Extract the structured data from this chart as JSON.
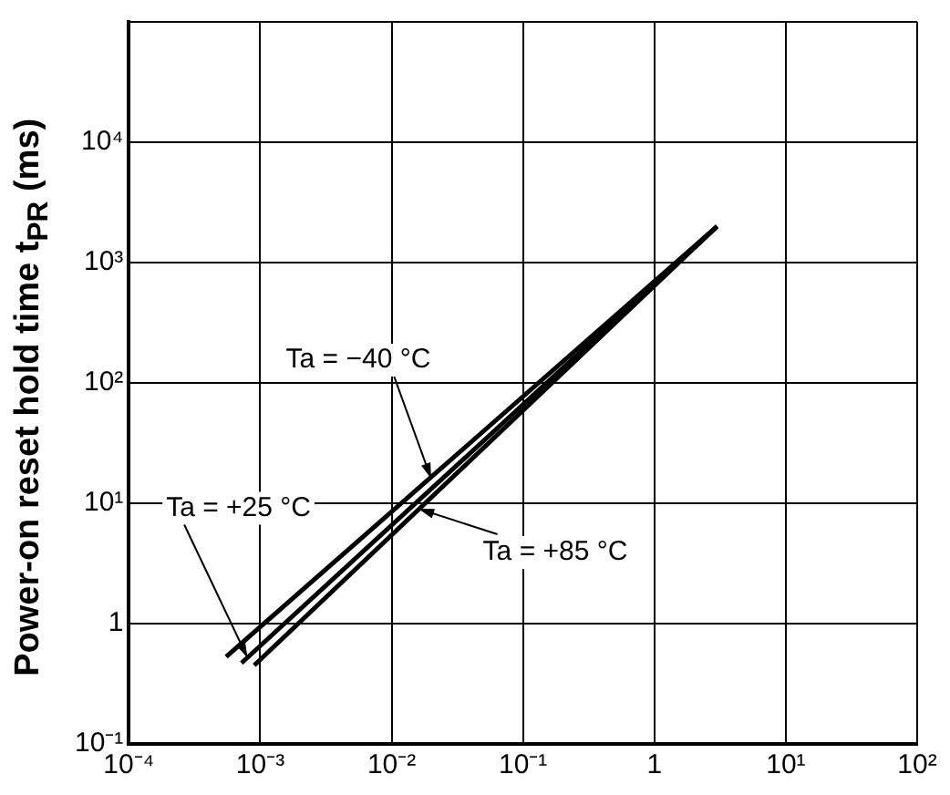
{
  "chart_data": {
    "type": "line",
    "ylabel": "Power-on reset hold time t$_{PR}$ (ms)",
    "log": "xy",
    "grid": true,
    "marker": "none",
    "line_style": "solid",
    "xlim": [
      0.0001,
      100
    ],
    "xticks": [
      {
        "value": 0.0001,
        "label": "10⁻⁴"
      },
      {
        "value": 0.001,
        "label": "10⁻³"
      },
      {
        "value": 0.01,
        "label": "10⁻²"
      },
      {
        "value": 0.1,
        "label": "10⁻¹"
      },
      1,
      {
        "value": 10,
        "label": "10¹"
      },
      {
        "value": 100,
        "label": "10²"
      }
    ],
    "ylim": [
      0.1,
      100000
    ],
    "yticks": [
      {
        "value": 0.1,
        "label": "10⁻¹"
      },
      1,
      {
        "value": 10,
        "label": "10¹"
      },
      {
        "value": 100,
        "label": "10²"
      },
      {
        "value": 1000,
        "label": "10³"
      },
      {
        "value": 10000,
        "label": "10⁴"
      },
      {
        "value": 100000,
        "label": null
      }
    ],
    "series": [
      {
        "color": "#000000",
        "x": [
          0.00055,
          3
        ],
        "values": [
          0.53,
          2000
        ]
      },
      {
        "color": "#000000",
        "x": [
          0.00072,
          3
        ],
        "values": [
          0.47,
          2000
        ]
      },
      {
        "color": "#000000",
        "x": [
          0.0009,
          3
        ],
        "values": [
          0.45,
          2000
        ]
      }
    ],
    "annotations": [
      {
        "text": "Ta = −40 °C",
        "x": 0.02,
        "y": 16
      },
      {
        "text": "Ta = +25 °C",
        "x": 0.0008,
        "y": 0.52
      },
      {
        "text": "Ta = +85 °C",
        "x": 0.016,
        "y": 9
      }
    ],
    "legend": false
  }
}
